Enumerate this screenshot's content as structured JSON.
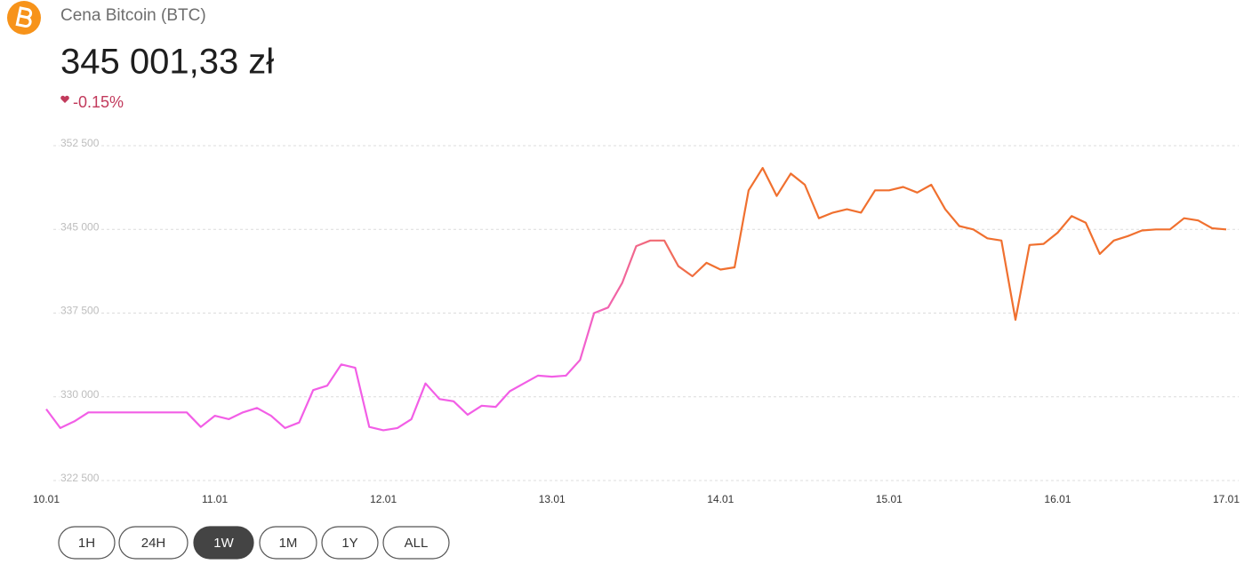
{
  "header": {
    "title": "Cena Bitcoin (BTC)",
    "price": "345 001,33 zł",
    "change": "-0.15%"
  },
  "range_buttons": {
    "labels": [
      "1H",
      "24H",
      "1W",
      "1M",
      "1Y",
      "ALL"
    ],
    "active": "1W"
  },
  "chart_data": {
    "type": "line",
    "categories": [
      "10.01",
      null,
      null,
      null,
      null,
      null,
      null,
      null,
      null,
      null,
      null,
      null,
      "11.01",
      null,
      null,
      null,
      null,
      null,
      null,
      null,
      null,
      null,
      null,
      null,
      "12.01",
      null,
      null,
      null,
      null,
      null,
      null,
      null,
      null,
      null,
      null,
      null,
      "13.01",
      null,
      null,
      null,
      null,
      null,
      null,
      null,
      null,
      null,
      null,
      null,
      "14.01",
      null,
      null,
      null,
      null,
      null,
      null,
      null,
      null,
      null,
      null,
      null,
      "15.01",
      null,
      null,
      null,
      null,
      null,
      null,
      null,
      null,
      null,
      null,
      null,
      "16.01",
      null,
      null,
      null,
      null,
      null,
      null,
      null,
      null,
      null,
      null,
      null,
      "17.01"
    ],
    "series": [
      {
        "gradient": [
          "#f25ee6",
          "#f0702f"
        ],
        "values": [
          328900,
          327200,
          327800,
          328600,
          328600,
          328600,
          328600,
          328600,
          328600,
          328600,
          328600,
          327300,
          328300,
          328000,
          328600,
          329000,
          328300,
          327200,
          327700,
          330600,
          331000,
          332900,
          332600,
          327300,
          327000,
          327200,
          328000,
          331200,
          329800,
          329600,
          328400,
          329200,
          329100,
          330500,
          331200,
          331900,
          331800,
          331900,
          333300,
          337500,
          338000,
          340200,
          343500,
          344000,
          344000,
          341700,
          340800,
          342000,
          341400,
          341600,
          348500,
          350500,
          348000,
          350000,
          349000,
          346000,
          346500,
          346800,
          346500,
          348500,
          348500,
          348800,
          348300,
          349000,
          346800,
          345300,
          345000,
          344200,
          344000,
          336900,
          343600,
          343700,
          344700,
          346200,
          345600,
          342800,
          344000,
          344400,
          344900,
          345000,
          345000,
          346000,
          345800,
          345100,
          345000
        ]
      }
    ],
    "ylim": [
      322500,
      352500
    ],
    "yticks": [
      {
        "value": 322500,
        "label": "322 500"
      },
      {
        "value": 330000,
        "label": "330 000"
      },
      {
        "value": 337500,
        "label": "337 500"
      },
      {
        "value": 345000,
        "label": "345 000"
      },
      {
        "value": 352500,
        "label": "352 500"
      }
    ],
    "grid": true
  }
}
